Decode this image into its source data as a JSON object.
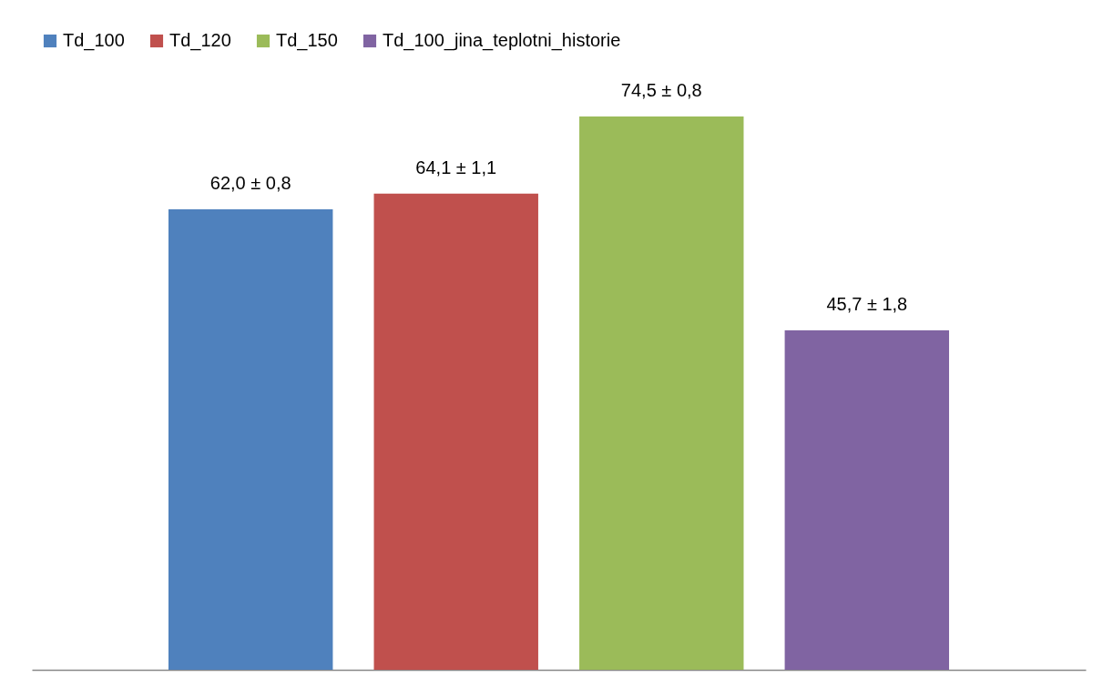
{
  "chart_data": {
    "type": "bar",
    "categories": [
      null
    ],
    "series": [
      {
        "name": "Td_100",
        "color": "#4f81bd",
        "values": [
          62.0
        ],
        "value_labels": [
          "62,0 ± 0,8"
        ]
      },
      {
        "name": "Td_120",
        "color": "#c0504d",
        "values": [
          64.1
        ],
        "value_labels": [
          "64,1 ± 1,1"
        ]
      },
      {
        "name": "Td_150",
        "color": "#9bbb59",
        "values": [
          74.5
        ],
        "value_labels": [
          "74,5 ± 0,8"
        ]
      },
      {
        "name": "Td_100_jina_teplotni_historie",
        "color": "#8064a2",
        "values": [
          45.7
        ],
        "value_labels": [
          "45,7 ± 1,8"
        ]
      }
    ],
    "relative": false,
    "legend": "top",
    "tick_labels": false
  }
}
